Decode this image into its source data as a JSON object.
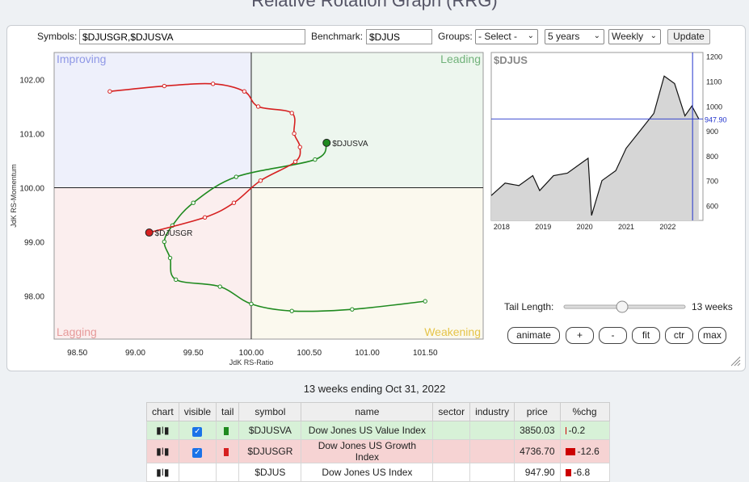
{
  "page_title": "Relative Rotation Graph (RRG)",
  "controls": {
    "symbols_label": "Symbols:",
    "symbols_value": "$DJUSGR,$DJUSVA",
    "benchmark_label": "Benchmark:",
    "benchmark_value": "$DJUS",
    "groups_label": "Groups:",
    "groups_value": "- Select -",
    "period_value": "5 years",
    "interval_value": "Weekly",
    "update_label": "Update"
  },
  "rrg": {
    "quadrants": {
      "improving": "Improving",
      "leading": "Leading",
      "lagging": "Lagging",
      "weakening": "Weakening"
    },
    "quadrant_colors": {
      "improving": "#eef0fb",
      "leading": "#edf6ee",
      "lagging": "#fbeeee",
      "weakening": "#fbf9ee"
    },
    "quadrant_label_colors": {
      "improving": "#8f98e6",
      "leading": "#71b27a",
      "lagging": "#e69a9a",
      "weakening": "#e5c44a"
    },
    "xlabel": "JdK RS-Ratio",
    "ylabel": "JdK RS-Momentum",
    "x_ticks": [
      "98.50",
      "99.00",
      "99.50",
      "100.00",
      "100.50",
      "101.00",
      "101.50"
    ],
    "y_ticks": [
      "102.00",
      "101.00",
      "100.00",
      "99.00",
      "98.00"
    ],
    "xlim": [
      98.3,
      102.0
    ],
    "ylim": [
      97.2,
      102.5
    ],
    "series": [
      {
        "name": "$DJUSVA",
        "color": "#1f8a1f",
        "points": [
          [
            101.5,
            97.9
          ],
          [
            100.87,
            97.75
          ],
          [
            100.35,
            97.72
          ],
          [
            100.0,
            97.85
          ],
          [
            99.73,
            98.17
          ],
          [
            99.35,
            98.3
          ],
          [
            99.3,
            98.7
          ],
          [
            99.25,
            99.0
          ],
          [
            99.32,
            99.3
          ],
          [
            99.5,
            99.72
          ],
          [
            99.87,
            100.2
          ],
          [
            100.55,
            100.52
          ],
          [
            100.65,
            100.83
          ]
        ]
      },
      {
        "name": "$DJUSGR",
        "color": "#d62020",
        "points": [
          [
            98.78,
            101.78
          ],
          [
            99.25,
            101.88
          ],
          [
            99.67,
            101.92
          ],
          [
            99.94,
            101.78
          ],
          [
            100.06,
            101.5
          ],
          [
            100.35,
            101.38
          ],
          [
            100.37,
            101.0
          ],
          [
            100.42,
            100.75
          ],
          [
            100.38,
            100.48
          ],
          [
            100.08,
            100.13
          ],
          [
            99.85,
            99.72
          ],
          [
            99.6,
            99.45
          ],
          [
            99.12,
            99.17
          ]
        ]
      }
    ]
  },
  "benchmark_chart": {
    "symbol": "$DJUS",
    "y_ticks": [
      "1200",
      "1100",
      "1000",
      "900",
      "800",
      "700",
      "600"
    ],
    "x_ticks": [
      "2018",
      "2019",
      "2020",
      "2021",
      "2022"
    ],
    "current_value": "947.90",
    "chart_data": {
      "type": "area",
      "x": [
        "2017-10",
        "2018-02",
        "2018-06",
        "2018-10",
        "2018-12",
        "2019-04",
        "2019-08",
        "2019-12",
        "2020-02",
        "2020-03",
        "2020-06",
        "2020-10",
        "2021-01",
        "2021-05",
        "2021-09",
        "2021-12",
        "2022-03",
        "2022-06",
        "2022-08",
        "2022-10"
      ],
      "values": [
        640,
        690,
        680,
        720,
        660,
        720,
        730,
        770,
        790,
        560,
        700,
        740,
        830,
        900,
        970,
        1120,
        1090,
        960,
        1000,
        947.9
      ],
      "ylim": [
        540,
        1215
      ]
    }
  },
  "tail": {
    "label": "Tail Length:",
    "value_label": "13 weeks",
    "value": 13,
    "min": 1,
    "max": 26
  },
  "rrg_buttons": {
    "animate": "animate",
    "plus": "+",
    "minus": "-",
    "fit": "fit",
    "ctr": "ctr",
    "max": "max"
  },
  "weeks_caption": "13 weeks ending Oct 31, 2022",
  "table": {
    "headers": [
      "chart",
      "visible",
      "tail",
      "symbol",
      "name",
      "sector",
      "industry",
      "price",
      "%chg"
    ],
    "rows": [
      {
        "symbol": "$DJUSVA",
        "name": "Dow Jones US Value Index",
        "sector": "",
        "industry": "",
        "price": "3850.03",
        "chg": "-0.2",
        "tail_color": "#1f8a1f"
      },
      {
        "symbol": "$DJUSGR",
        "name": "Dow Jones US Growth Index",
        "sector": "",
        "industry": "",
        "price": "4736.70",
        "chg": "-12.6",
        "tail_color": "#d62020"
      },
      {
        "symbol": "$DJUS",
        "name": "Dow Jones US Index",
        "sector": "",
        "industry": "",
        "price": "947.90",
        "chg": "-6.8",
        "tail_color": ""
      }
    ]
  }
}
